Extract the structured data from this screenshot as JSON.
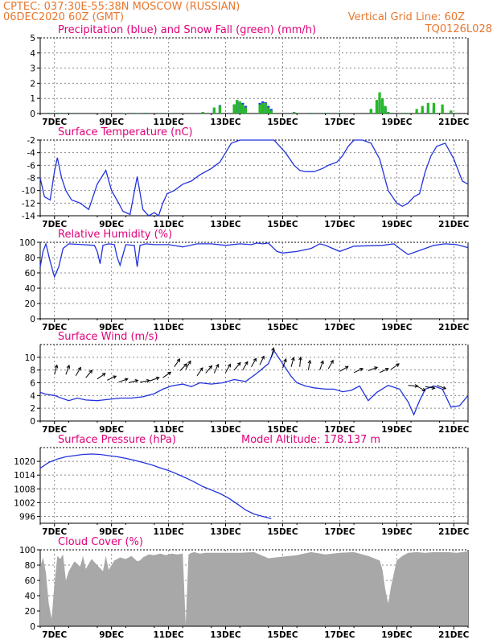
{
  "header": {
    "line1_left": "CPTEC:    037:30E-55:38N   MOSCOW (RUSSIAN)",
    "line2_left": "06DEC2020 60Z (GMT)",
    "line1_right": "Vertical Grid Line: 60Z",
    "line2_right": "TQ0126L028"
  },
  "x_labels": [
    "7DEC",
    "9DEC",
    "11DEC",
    "13DEC",
    "15DEC",
    "17DEC",
    "19DEC",
    "21DEC"
  ],
  "colors": {
    "blue": "#2233dd",
    "green": "#22bb22",
    "gray": "#a8a8a8",
    "arrow": "#000000",
    "title": "#e0007a",
    "header": "#e8772e"
  },
  "chart_data": [
    {
      "id": "precip",
      "type": "bar",
      "title": "Precipitation (blue) and Snow Fall (green) (mm/h)",
      "ylim": [
        0,
        5
      ],
      "yticks": [
        0,
        1,
        2,
        3,
        4,
        5
      ],
      "x_unit": "days since 06DEC2020 06Z",
      "series": [
        {
          "name": "Precipitation",
          "color": "blue",
          "x": [
            0.3,
            0.6,
            1.0,
            2.1,
            3.0,
            3.4,
            3.7,
            4.2,
            4.5,
            5.7,
            6.1,
            6.3,
            6.8,
            6.9,
            7.0,
            7.1,
            7.2,
            7.7,
            7.8,
            7.9,
            8.0,
            8.1,
            8.9,
            9.5,
            10.0,
            10.5,
            11.6,
            11.8,
            11.9,
            12.0,
            12.1,
            12.2,
            12.8,
            13.2,
            13.4,
            13.6,
            13.8,
            14.1,
            14.4
          ],
          "values": [
            0.05,
            0.05,
            0.05,
            0.03,
            0.03,
            0.04,
            0.05,
            0.04,
            0.04,
            0.1,
            0.3,
            0.55,
            0.6,
            0.8,
            0.8,
            0.7,
            0.5,
            0.7,
            0.8,
            0.75,
            0.5,
            0.3,
            0.1,
            0.05,
            0.05,
            0.05,
            0.3,
            0.7,
            0.9,
            0.7,
            0.4,
            0.1,
            0.05,
            0.1,
            0.2,
            0.4,
            0.4,
            0.3,
            0.1
          ]
        },
        {
          "name": "Snow Fall",
          "color": "green",
          "x": [
            0.3,
            0.6,
            1.0,
            2.1,
            3.0,
            3.4,
            3.7,
            4.2,
            4.5,
            5.7,
            6.1,
            6.3,
            6.8,
            6.9,
            7.0,
            7.1,
            7.2,
            7.7,
            7.8,
            7.9,
            8.0,
            8.1,
            8.9,
            9.5,
            10.0,
            10.5,
            11.6,
            11.8,
            11.9,
            12.0,
            12.1,
            12.2,
            12.8,
            13.2,
            13.4,
            13.6,
            13.8,
            14.1,
            14.4
          ],
          "values": [
            0.03,
            0.03,
            0.03,
            0.02,
            0.02,
            0.03,
            0.03,
            0.03,
            0.03,
            0.1,
            0.4,
            0.5,
            0.6,
            0.9,
            0.8,
            0.6,
            0.4,
            0.6,
            0.7,
            0.7,
            0.4,
            0.2,
            0.08,
            0.04,
            0.04,
            0.04,
            0.3,
            0.9,
            1.4,
            1.0,
            0.5,
            0.1,
            0.05,
            0.3,
            0.5,
            0.7,
            0.7,
            0.6,
            0.2
          ]
        }
      ]
    },
    {
      "id": "temp",
      "type": "line",
      "title": "Surface Temperature (nC)",
      "ylim": [
        -14,
        -2
      ],
      "yticks": [
        -14,
        -12,
        -10,
        -8,
        -6,
        -4,
        -2
      ],
      "x_unit": "days since 06DEC2020 06Z",
      "series": [
        {
          "name": "Temperature",
          "color": "blue",
          "x": [
            0.0,
            0.15,
            0.35,
            0.5,
            0.6,
            0.75,
            0.9,
            1.1,
            1.4,
            1.7,
            2.0,
            2.3,
            2.5,
            2.75,
            2.9,
            3.15,
            3.4,
            3.6,
            3.8,
            4.0,
            4.15,
            4.3,
            4.45,
            4.7,
            5.0,
            5.3,
            5.6,
            6.0,
            6.3,
            6.5,
            6.7,
            7.0,
            7.3,
            7.6,
            7.9,
            8.0,
            8.2,
            8.4,
            8.6,
            8.9,
            9.1,
            9.3,
            9.6,
            9.9,
            10.1,
            10.4,
            10.6,
            10.8,
            11.0,
            11.3,
            11.6,
            11.9,
            12.2,
            12.5,
            12.7,
            12.9,
            13.1,
            13.3,
            13.5,
            13.7,
            13.9,
            14.2,
            14.5,
            14.8,
            15.0
          ],
          "values": [
            -8.0,
            -11.0,
            -11.5,
            -7.0,
            -4.8,
            -8.0,
            -10.0,
            -11.5,
            -12.0,
            -13.0,
            -9.0,
            -6.8,
            -10.0,
            -12.0,
            -13.3,
            -13.8,
            -7.8,
            -13.0,
            -14.0,
            -13.5,
            -14.5,
            -12.0,
            -10.5,
            -10.0,
            -9.0,
            -8.5,
            -7.5,
            -6.5,
            -5.5,
            -4.0,
            -2.5,
            -1.5,
            -1.0,
            -0.5,
            -1.0,
            -1.5,
            -2.0,
            -3.0,
            -4.0,
            -6.0,
            -6.8,
            -7.0,
            -7.0,
            -6.5,
            -6.0,
            -5.5,
            -4.5,
            -3.0,
            -2.0,
            -1.5,
            -2.5,
            -5.0,
            -10.0,
            -12.0,
            -12.5,
            -12.0,
            -11.0,
            -10.5,
            -7.0,
            -4.5,
            -3.0,
            -2.5,
            -5.0,
            -8.5,
            -9.0
          ]
        }
      ]
    },
    {
      "id": "rh",
      "type": "line",
      "title": "Relative Humidity (%)",
      "ylim": [
        0,
        100
      ],
      "yticks": [
        0,
        20,
        40,
        60,
        80,
        100
      ],
      "x_unit": "days since 06DEC2020 06Z",
      "series": [
        {
          "name": "Relative Humidity",
          "color": "blue",
          "x": [
            0.0,
            0.1,
            0.2,
            0.35,
            0.5,
            0.65,
            0.8,
            1.0,
            1.5,
            1.9,
            2.0,
            2.1,
            2.2,
            2.4,
            2.6,
            2.7,
            2.8,
            3.0,
            3.3,
            3.4,
            3.5,
            3.7,
            4.0,
            4.5,
            5.0,
            5.5,
            6.0,
            6.5,
            7.0,
            7.4,
            7.6,
            7.8,
            8.0,
            8.3,
            8.5,
            9.0,
            9.5,
            9.8,
            10.0,
            10.5,
            11.0,
            12.0,
            12.4,
            12.6,
            12.9,
            13.2,
            13.5,
            13.8,
            14.2,
            14.6,
            15.0
          ],
          "values": [
            68,
            88,
            98,
            75,
            55,
            68,
            92,
            98,
            97,
            96,
            88,
            72,
            96,
            98,
            97,
            80,
            70,
            97,
            96,
            68,
            96,
            98,
            97,
            97,
            94,
            98,
            98,
            96,
            98,
            97,
            99,
            98,
            99,
            88,
            86,
            88,
            92,
            98,
            96,
            88,
            95,
            96,
            98,
            92,
            84,
            88,
            92,
            96,
            98,
            97,
            93
          ]
        }
      ]
    },
    {
      "id": "wind",
      "type": "line",
      "title": "Surface Wind (m/s)",
      "ylim": [
        0,
        12
      ],
      "yticks": [
        0,
        2,
        4,
        6,
        8,
        10
      ],
      "x_unit": "days since 06DEC2020 06Z",
      "series": [
        {
          "name": "Wind Speed",
          "color": "blue",
          "x": [
            0.0,
            0.2,
            0.5,
            0.8,
            1.0,
            1.3,
            1.6,
            2.0,
            2.4,
            2.8,
            3.2,
            3.6,
            4.0,
            4.3,
            4.6,
            5.0,
            5.3,
            5.6,
            6.0,
            6.4,
            6.8,
            7.2,
            7.6,
            8.0,
            8.2,
            8.5,
            8.8,
            9.0,
            9.3,
            9.6,
            10.0,
            10.3,
            10.6,
            10.9,
            11.2,
            11.5,
            11.8,
            12.2,
            12.6,
            12.9,
            13.1,
            13.3,
            13.5,
            13.8,
            14.1,
            14.4,
            14.7,
            15.0
          ],
          "values": [
            4.5,
            4.2,
            4.0,
            3.5,
            3.2,
            3.6,
            3.3,
            3.2,
            3.4,
            3.6,
            3.6,
            3.8,
            4.3,
            5.0,
            5.5,
            5.8,
            5.4,
            6.0,
            5.8,
            6.0,
            6.5,
            6.2,
            7.5,
            9.0,
            11.0,
            9.0,
            7.0,
            6.0,
            5.5,
            5.2,
            5.0,
            5.0,
            4.6,
            4.8,
            5.5,
            3.2,
            4.5,
            5.6,
            5.0,
            3.0,
            1.0,
            3.2,
            5.0,
            5.5,
            5.0,
            2.2,
            2.4,
            4.0
          ]
        }
      ],
      "arrow_x": [
        0.5,
        0.9,
        1.25,
        1.6,
        2.0,
        2.35,
        2.75,
        3.1,
        3.5,
        3.85,
        4.3,
        4.7,
        4.9,
        5.1,
        5.5,
        5.8,
        6.1,
        6.5,
        6.8,
        7.1,
        7.4,
        7.7,
        8.1,
        8.5,
        8.8,
        9.1,
        9.4,
        9.8,
        10.1,
        10.5,
        11.0,
        11.5,
        11.9,
        12.3,
        12.9,
        13.2,
        13.5,
        13.9
      ],
      "arrow_speed": [
        7.3,
        7.3,
        7.1,
        6.8,
        6.6,
        6.4,
        6.1,
        6.0,
        6.1,
        6.3,
        6.8,
        8.5,
        7.9,
        8.1,
        7.1,
        7.5,
        7.5,
        7.6,
        8.0,
        8.0,
        8.5,
        8.8,
        10.0,
        8.3,
        8.5,
        8.5,
        8.0,
        8.0,
        8.2,
        7.8,
        7.6,
        7.9,
        7.6,
        8.1,
        5.6,
        5.5,
        5.4,
        5.6
      ],
      "arrow_dir_deg": [
        15,
        20,
        30,
        40,
        55,
        65,
        70,
        75,
        80,
        70,
        55,
        35,
        45,
        30,
        35,
        40,
        25,
        30,
        40,
        30,
        30,
        25,
        15,
        20,
        15,
        5,
        10,
        20,
        30,
        60,
        65,
        70,
        65,
        55,
        95,
        120,
        100,
        110
      ]
    },
    {
      "id": "pressure",
      "type": "line",
      "title": "Surface Pressure (hPa)",
      "subtitle": "Model Altitude: 178.137 m",
      "ylim": [
        993,
        1026
      ],
      "yticks": [
        996,
        1002,
        1008,
        1014,
        1020
      ],
      "x_unit": "days since 06DEC2020 06Z",
      "series": [
        {
          "name": "Surface Pressure",
          "color": "blue",
          "x": [
            0.0,
            0.3,
            0.6,
            0.9,
            1.2,
            1.5,
            1.8,
            2.1,
            2.4,
            2.7,
            3.0,
            3.3,
            3.6,
            3.9,
            4.2,
            4.5,
            4.8,
            5.1,
            5.4,
            5.7,
            6.0,
            6.3,
            6.6,
            6.9,
            7.2,
            7.5,
            7.8,
            8.1
          ],
          "values": [
            1017,
            1019.5,
            1021,
            1022,
            1022.5,
            1023,
            1023.2,
            1023,
            1022.5,
            1022,
            1021.3,
            1020.5,
            1019.5,
            1018.5,
            1017.2,
            1016,
            1014.5,
            1012.8,
            1011,
            1009,
            1007.5,
            1006,
            1004,
            1001.5,
            998.8,
            997,
            996,
            995
          ]
        }
      ]
    },
    {
      "id": "cloud",
      "type": "area",
      "title": "Cloud Cover (%)",
      "ylim": [
        0,
        100
      ],
      "yticks": [
        0,
        20,
        40,
        60,
        80,
        100
      ],
      "x_unit": "days since 06DEC2020 06Z",
      "series": [
        {
          "name": "Cloud Cover",
          "color": "gray",
          "x": [
            0.0,
            0.1,
            0.2,
            0.3,
            0.4,
            0.5,
            0.6,
            0.7,
            0.8,
            0.9,
            1.0,
            1.2,
            1.4,
            1.5,
            1.6,
            1.8,
            2.0,
            2.2,
            2.3,
            2.4,
            2.6,
            2.8,
            3.0,
            3.2,
            3.4,
            3.5,
            3.6,
            3.8,
            4.0,
            4.2,
            4.4,
            4.6,
            4.8,
            5.0,
            5.1,
            5.2,
            5.3,
            5.4,
            5.6,
            5.8,
            6.0,
            6.5,
            7.0,
            7.5,
            8.0,
            8.5,
            9.0,
            9.5,
            10.0,
            10.5,
            11.0,
            11.5,
            11.9,
            12.0,
            12.1,
            12.2,
            12.3,
            12.5,
            12.7,
            12.9,
            13.2,
            13.5,
            13.8,
            14.0,
            14.3,
            14.6,
            15.0
          ],
          "values": [
            78,
            90,
            70,
            30,
            10,
            55,
            92,
            88,
            94,
            60,
            72,
            85,
            78,
            92,
            75,
            88,
            80,
            72,
            92,
            74,
            86,
            90,
            88,
            92,
            85,
            86,
            90,
            94,
            93,
            95,
            93,
            95,
            94,
            95,
            2,
            94,
            96,
            97,
            95,
            96,
            96,
            96,
            96,
            97,
            89,
            91,
            93,
            97,
            94,
            96,
            97,
            92,
            86,
            74,
            48,
            30,
            52,
            86,
            92,
            96,
            97,
            96,
            97,
            97,
            97,
            96,
            98
          ]
        }
      ]
    }
  ]
}
